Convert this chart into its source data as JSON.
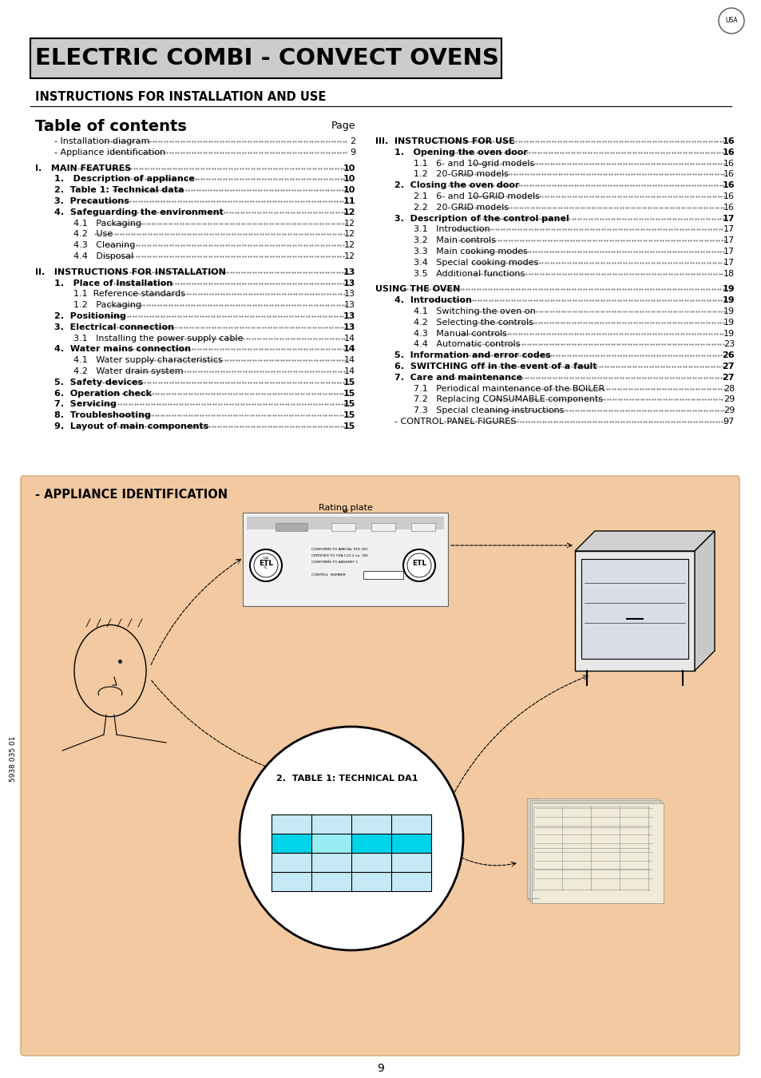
{
  "title": "ELECTRIC COMBI - CONVECT OVENS",
  "subtitle": "INSTRUCTIONS FOR INSTALLATION AND USE",
  "toc_header": "Table of contents",
  "toc_page": "Page",
  "left_col": [
    {
      "text": "- Installation diagram",
      "page": "2",
      "bold": false,
      "indent": 1
    },
    {
      "text": "- Appliance identification",
      "page": "9",
      "bold": false,
      "indent": 1
    },
    {
      "text": "I.   MAIN FEATURES",
      "page": "10",
      "bold": true,
      "indent": 0
    },
    {
      "text": "1.   Description of appliance",
      "page": "10",
      "bold": true,
      "indent": 1
    },
    {
      "text": "2.  Table 1: Technical data",
      "page": "10",
      "bold": true,
      "indent": 1
    },
    {
      "text": "3.  Precautions",
      "page": "11",
      "bold": true,
      "indent": 1
    },
    {
      "text": "4.  Safeguarding the environment",
      "page": "12",
      "bold": true,
      "indent": 1
    },
    {
      "text": "4.1   Packaging",
      "page": "12",
      "bold": false,
      "indent": 2
    },
    {
      "text": "4.2   Use",
      "page": "12",
      "bold": false,
      "indent": 2
    },
    {
      "text": "4.3   Cleaning",
      "page": "12",
      "bold": false,
      "indent": 2
    },
    {
      "text": "4.4   Disposal",
      "page": "12",
      "bold": false,
      "indent": 2
    },
    {
      "text": "II.   INSTRUCTIONS FOR INSTALLATION",
      "page": "13",
      "bold": true,
      "indent": 0
    },
    {
      "text": "1.   Place of Installation",
      "page": "13",
      "bold": true,
      "indent": 1
    },
    {
      "text": "1.1  Reference standards",
      "page": "13",
      "bold": false,
      "indent": 2
    },
    {
      "text": "1.2   Packaging",
      "page": "13",
      "bold": false,
      "indent": 2
    },
    {
      "text": "2.  Positioning",
      "page": "13",
      "bold": true,
      "indent": 1
    },
    {
      "text": "3.  Electrical connection",
      "page": "13",
      "bold": true,
      "indent": 1
    },
    {
      "text": "3.1   Installing the power supply cable",
      "page": "14",
      "bold": false,
      "indent": 2
    },
    {
      "text": "4.  Water mains connection",
      "page": "14",
      "bold": true,
      "indent": 1
    },
    {
      "text": "4.1   Water supply characteristics",
      "page": "14",
      "bold": false,
      "indent": 2
    },
    {
      "text": "4.2   Water drain system",
      "page": "14",
      "bold": false,
      "indent": 2
    },
    {
      "text": "5.  Safety devices",
      "page": "15",
      "bold": true,
      "indent": 1
    },
    {
      "text": "6.  Operation check",
      "page": "15",
      "bold": true,
      "indent": 1
    },
    {
      "text": "7.  Servicing",
      "page": "15",
      "bold": true,
      "indent": 1
    },
    {
      "text": "8.  Troubleshooting",
      "page": "15",
      "bold": true,
      "indent": 1
    },
    {
      "text": "9.  Layout of main components",
      "page": "15",
      "bold": true,
      "indent": 1
    }
  ],
  "right_col": [
    {
      "text": "III.  INSTRUCTIONS FOR USE",
      "page": "16",
      "bold": true,
      "indent": 0
    },
    {
      "text": "1.   Opening the oven door",
      "page": "16",
      "bold": true,
      "indent": 1
    },
    {
      "text": "1.1   6- and 10-grid models",
      "page": "16",
      "bold": false,
      "indent": 2
    },
    {
      "text": "1.2   20-GRID models",
      "page": "16",
      "bold": false,
      "indent": 2
    },
    {
      "text": "2.  Closing the oven door",
      "page": "16",
      "bold": true,
      "indent": 1
    },
    {
      "text": "2.1   6- and 10-GRID models",
      "page": "16",
      "bold": false,
      "indent": 2
    },
    {
      "text": "2.2   20-GRID models",
      "page": "16",
      "bold": false,
      "indent": 2
    },
    {
      "text": "3.  Description of the control panel",
      "page": "17",
      "bold": true,
      "indent": 1
    },
    {
      "text": "3.1   Introduction",
      "page": "17",
      "bold": false,
      "indent": 2
    },
    {
      "text": "3.2   Main controls",
      "page": "17",
      "bold": false,
      "indent": 2
    },
    {
      "text": "3.3   Main cooking modes",
      "page": "17",
      "bold": false,
      "indent": 2
    },
    {
      "text": "3.4   Special cooking modes",
      "page": "17",
      "bold": false,
      "indent": 2
    },
    {
      "text": "3.5   Additional functions",
      "page": "18",
      "bold": false,
      "indent": 2
    },
    {
      "text": "USING THE OVEN",
      "page": "19",
      "bold": true,
      "indent": 0
    },
    {
      "text": "4.  Introduction",
      "page": "19",
      "bold": true,
      "indent": 1
    },
    {
      "text": "4.1   Switching the oven on",
      "page": "19",
      "bold": false,
      "indent": 2
    },
    {
      "text": "4.2   Selecting the controls",
      "page": "19",
      "bold": false,
      "indent": 2
    },
    {
      "text": "4.3   Manual controls",
      "page": "19",
      "bold": false,
      "indent": 2
    },
    {
      "text": "4.4   Automatic controls",
      "page": "23",
      "bold": false,
      "indent": 2
    },
    {
      "text": "5.  Information and error codes",
      "page": "26",
      "bold": true,
      "indent": 1
    },
    {
      "text": "6.  SWITCHING off in the event of a fault",
      "page": "27",
      "bold": true,
      "indent": 1
    },
    {
      "text": "7.  Care and maintenance",
      "page": "27",
      "bold": true,
      "indent": 1
    },
    {
      "text": "7.1   Periodical maintenance of the BOILER",
      "page": "28",
      "bold": false,
      "indent": 2
    },
    {
      "text": "7.2   Replacing CONSUMABLE components",
      "page": "29",
      "bold": false,
      "indent": 2
    },
    {
      "text": "7.3   Special cleaning instructions",
      "page": "29",
      "bold": false,
      "indent": 2
    },
    {
      "text": "- CONTROL PANEL FIGURES",
      "page": "97",
      "bold": false,
      "indent": 1
    }
  ],
  "section_label": "- APPLIANCE IDENTIFICATION",
  "page_number": "9",
  "sidebar_text": "5938 035 01",
  "bg_color": "#ffffff",
  "title_bg": "#cccccc",
  "section_bg": "#f2c9a0",
  "section_border": "#d4a870",
  "rating_plate_label": "Rating plate",
  "table_label": "2.  TABLE 1: TECHNICAL DA1"
}
